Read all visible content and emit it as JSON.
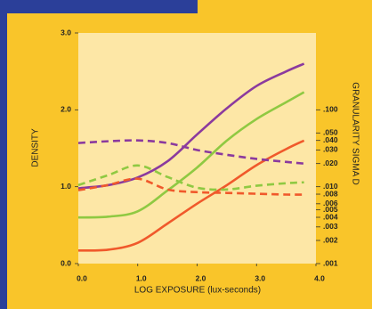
{
  "chart_data": {
    "type": "line",
    "x_label": "LOG EXPOSURE (lux-seconds)",
    "y_label": "DENSITY",
    "y2_label": "GRANULARITY SIGMA D",
    "x": [
      0,
      0.5,
      1.0,
      1.5,
      2.0,
      2.5,
      3.0,
      3.5,
      3.8
    ],
    "xlim": [
      0,
      4
    ],
    "xticks": [
      {
        "value": 0,
        "label": "0.0"
      },
      {
        "value": 1,
        "label": "1.0"
      },
      {
        "value": 2,
        "label": "2.0"
      },
      {
        "value": 3,
        "label": "3.0"
      },
      {
        "value": 4,
        "label": "4.0"
      }
    ],
    "ylim": [
      0,
      3
    ],
    "yticks": [
      {
        "value": 0,
        "label": "0.0"
      },
      {
        "value": 1,
        "label": "1.0"
      },
      {
        "value": 2,
        "label": "2.0"
      },
      {
        "value": 3,
        "label": "3.0"
      }
    ],
    "y2lim": [
      0.001,
      1
    ],
    "y2_log": true,
    "y2ticks": [
      {
        "value": 0.1,
        "label": ".100"
      },
      {
        "value": 0.05,
        "label": ".050"
      },
      {
        "value": 0.04,
        "label": ".040"
      },
      {
        "value": 0.03,
        "label": ".030"
      },
      {
        "value": 0.02,
        "label": ".020"
      },
      {
        "value": 0.01,
        "label": ".010"
      },
      {
        "value": 0.008,
        "label": ".008"
      },
      {
        "value": 0.006,
        "label": ".006"
      },
      {
        "value": 0.005,
        "label": ".005"
      },
      {
        "value": 0.004,
        "label": ".004"
      },
      {
        "value": 0.003,
        "label": ".003"
      },
      {
        "value": 0.002,
        "label": ".002"
      },
      {
        "value": 0.001,
        "label": ".001"
      }
    ],
    "series": [
      {
        "color": "#8b3a9e",
        "values": [
          0.98,
          1.02,
          1.12,
          1.33,
          1.68,
          2.02,
          2.31,
          2.5,
          2.6
        ]
      },
      {
        "color": "#8fc942",
        "values": [
          0.6,
          0.61,
          0.68,
          0.95,
          1.25,
          1.6,
          1.88,
          2.1,
          2.23
        ]
      },
      {
        "color": "#f0592b",
        "values": [
          0.17,
          0.18,
          0.27,
          0.52,
          0.78,
          1.02,
          1.28,
          1.49,
          1.6
        ]
      },
      {
        "color": "#8b3a9e",
        "axis": "y2",
        "dashed": true,
        "values": [
          0.037,
          0.039,
          0.04,
          0.037,
          0.03,
          0.026,
          0.023,
          0.021,
          0.02
        ]
      },
      {
        "color": "#8fc942",
        "axis": "y2",
        "dashed": true,
        "values": [
          0.0105,
          0.0141,
          0.0189,
          0.0134,
          0.0097,
          0.0092,
          0.0103,
          0.0111,
          0.0114
        ]
      },
      {
        "color": "#f0592b",
        "axis": "y2",
        "dashed": true,
        "values": [
          0.009,
          0.0105,
          0.0127,
          0.0092,
          0.0085,
          0.0083,
          0.0081,
          0.0079,
          0.0079
        ]
      }
    ]
  }
}
